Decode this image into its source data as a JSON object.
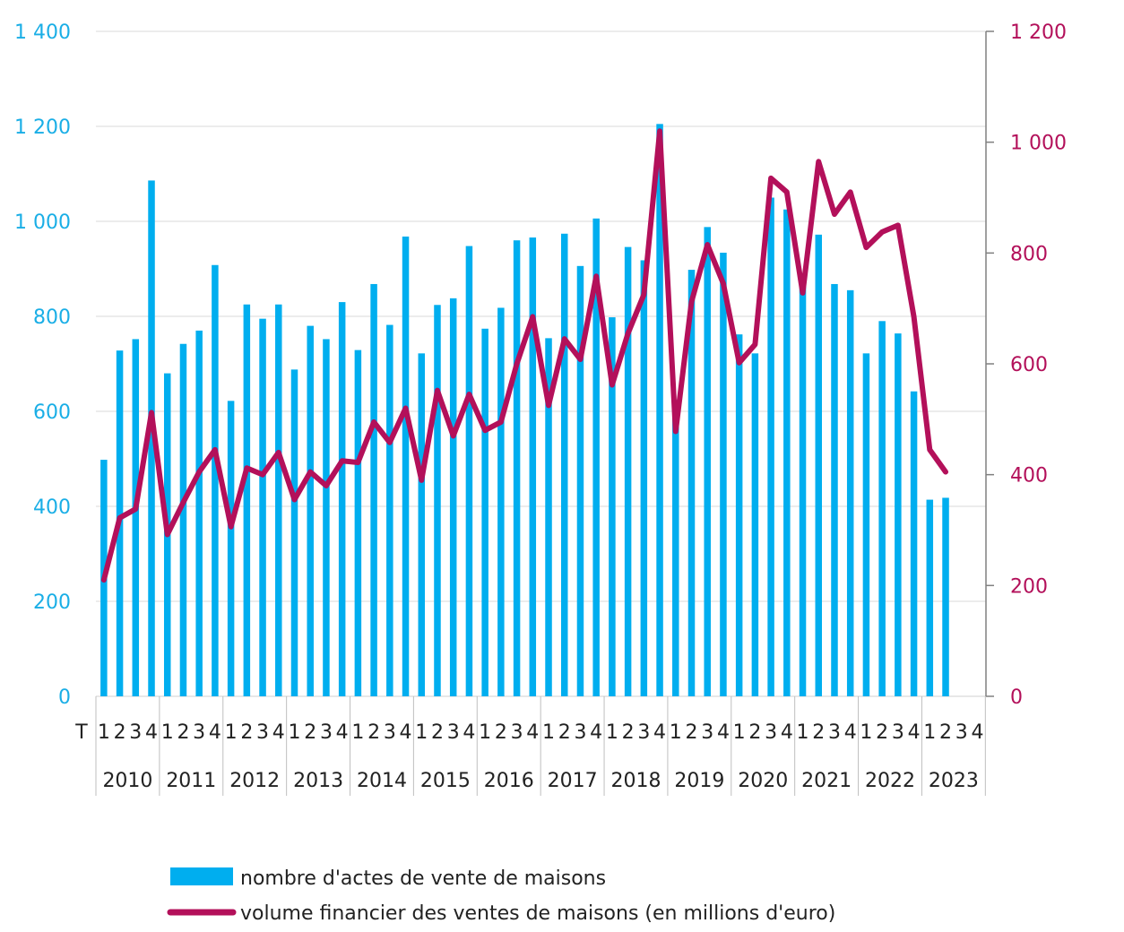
{
  "chart_data": {
    "type": "bar+line",
    "title": "",
    "quarter_axis_label": "T",
    "years": [
      "2010",
      "2011",
      "2012",
      "2013",
      "2014",
      "2015",
      "2016",
      "2017",
      "2018",
      "2019",
      "2020",
      "2021",
      "2022",
      "2023"
    ],
    "quarters": [
      "1",
      "2",
      "3",
      "4"
    ],
    "left_axis": {
      "ylim": [
        0,
        1400
      ],
      "ticks": [
        0,
        200,
        400,
        600,
        800,
        1000,
        1200,
        1400
      ],
      "tick_labels": [
        "0",
        "200",
        "400",
        "600",
        "800",
        "1 000",
        "1 200",
        "1 400"
      ]
    },
    "right_axis": {
      "ylim": [
        0,
        1200
      ],
      "ticks": [
        0,
        200,
        400,
        600,
        800,
        1000,
        1200
      ],
      "tick_labels": [
        "0",
        "200",
        "400",
        "600",
        "800",
        "1 000",
        "1 200"
      ]
    },
    "series": [
      {
        "name": "nombre d'actes de vente de maisons",
        "type": "bar",
        "axis": "left",
        "color": "#00aeef",
        "values": [
          498,
          728,
          752,
          1086,
          680,
          742,
          770,
          908,
          622,
          825,
          795,
          825,
          688,
          780,
          752,
          830,
          729,
          868,
          782,
          968,
          722,
          824,
          838,
          948,
          774,
          818,
          960,
          966,
          754,
          974,
          906,
          1006,
          798,
          946,
          918,
          1205,
          624,
          898,
          988,
          934,
          762,
          722,
          1050,
          1025,
          868,
          972,
          868,
          855,
          722,
          790,
          764,
          642,
          414,
          418
        ]
      },
      {
        "name": "volume financier des ventes de maisons (en millions d'euro)",
        "type": "line",
        "axis": "right",
        "color": "#b3105a",
        "values": [
          210,
          322,
          338,
          512,
          292,
          350,
          405,
          445,
          306,
          412,
          400,
          440,
          355,
          405,
          380,
          425,
          422,
          495,
          458,
          520,
          390,
          552,
          470,
          545,
          480,
          495,
          600,
          685,
          525,
          645,
          608,
          758,
          562,
          655,
          725,
          1020,
          478,
          712,
          815,
          745,
          602,
          635,
          935,
          910,
          728,
          965,
          870,
          910,
          810,
          838,
          850,
          685,
          445,
          405
        ]
      }
    ],
    "legend": {
      "position": "bottom",
      "entries": [
        "nombre d'actes de vente de maisons",
        "volume financier des ventes de maisons (en millions d'euro)"
      ]
    },
    "grid": true
  }
}
